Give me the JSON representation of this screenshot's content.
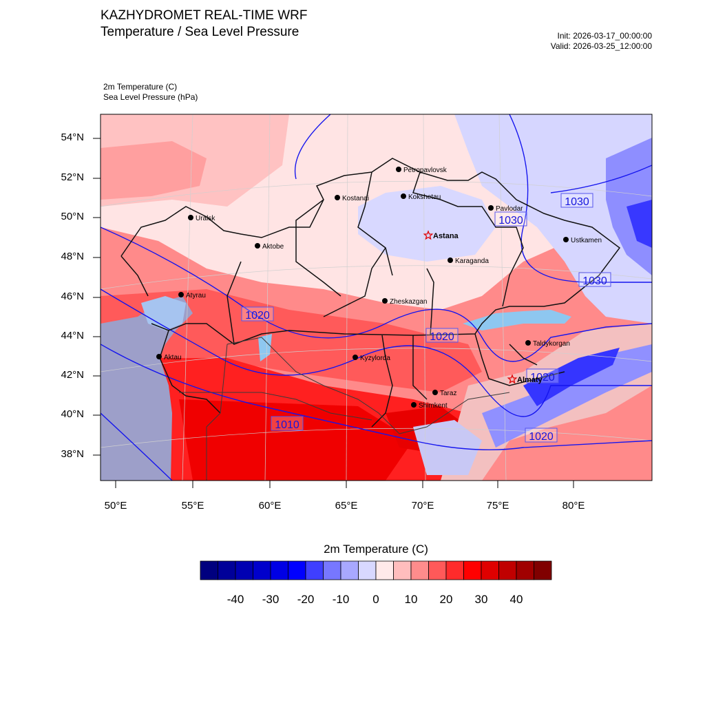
{
  "header": {
    "title": "KAZHYDROMET REAL-TIME WRF",
    "subtitle": "Temperature / Sea Level Pressure",
    "init": "Init: 2026-03-17_00:00:00",
    "valid": "Valid: 2026-03-25_12:00:00"
  },
  "fields": {
    "temperature": "2m Temperature   (C)",
    "pressure": "Sea Level Pressure   (hPa)"
  },
  "axes": {
    "lat_labels": [
      "54°N",
      "52°N",
      "50°N",
      "48°N",
      "46°N",
      "44°N",
      "42°N",
      "40°N",
      "38°N"
    ],
    "lon_labels": [
      "50°E",
      "55°E",
      "60°E",
      "65°E",
      "70°E",
      "75°E",
      "80°E"
    ]
  },
  "cities": [
    {
      "name": "Petropavlovsk",
      "capital": false
    },
    {
      "name": "Kostanai",
      "capital": false
    },
    {
      "name": "Kokshetau",
      "capital": false
    },
    {
      "name": "Uralsk",
      "capital": false
    },
    {
      "name": "Pavlodar",
      "capital": false
    },
    {
      "name": "Aktobe",
      "capital": false
    },
    {
      "name": "Astana",
      "capital": true
    },
    {
      "name": "Ustkamen",
      "capital": false
    },
    {
      "name": "Karaganda",
      "capital": false
    },
    {
      "name": "Atyrau",
      "capital": false
    },
    {
      "name": "Zheskazgan",
      "capital": false
    },
    {
      "name": "Taldykorgan",
      "capital": false
    },
    {
      "name": "Aktau",
      "capital": false
    },
    {
      "name": "Kyzylorda",
      "capital": false
    },
    {
      "name": "Almaty",
      "capital": true
    },
    {
      "name": "Taraz",
      "capital": false
    },
    {
      "name": "Shimkent",
      "capital": false
    }
  ],
  "isobar_labels": [
    "1030",
    "1030",
    "1030",
    "1020",
    "1020",
    "1020",
    "1020",
    "1010"
  ],
  "colorbar": {
    "title": "2m Temperature  (C)",
    "tick_labels": [
      "-40",
      "-30",
      "-20",
      "-10",
      "0",
      "10",
      "20",
      "30",
      "40"
    ],
    "colors": [
      "#00007f",
      "#000099",
      "#0000b2",
      "#0000cc",
      "#0000e5",
      "#0000ff",
      "#3f3fff",
      "#7777ff",
      "#a8a8ff",
      "#d8d8ff",
      "#ffeaea",
      "#ffbdbd",
      "#ff8c8c",
      "#ff5959",
      "#ff2b2b",
      "#ff0000",
      "#e00000",
      "#c00000",
      "#a00000",
      "#800000"
    ]
  }
}
